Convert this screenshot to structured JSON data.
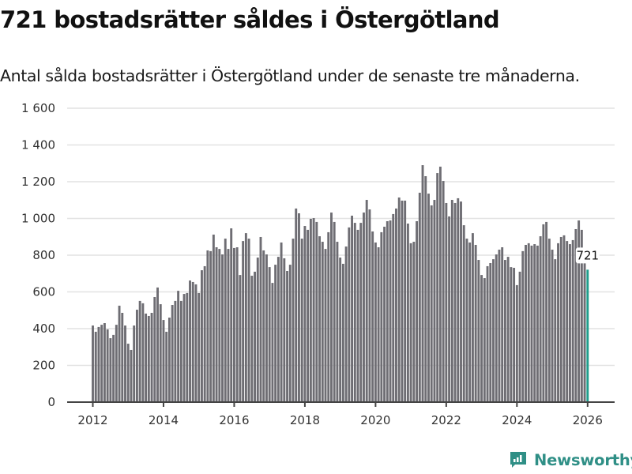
{
  "header": {
    "title": "721 bostadsrätter såldes i Östergötland",
    "subtitle": "Antal sålda bostadsrätter i Östergötland under de senaste tre månaderna."
  },
  "brand": {
    "name": "Newsworthy",
    "icon": "bar-chart-speech-bubble-icon",
    "color": "#2f8f86"
  },
  "colors": {
    "bar": "#6e6d73",
    "highlight": "#1f9e8c",
    "grid": "#e2e2e2",
    "axis": "#444444"
  },
  "chart_data": {
    "type": "bar",
    "title": "721 bostadsrätter såldes i Östergötland",
    "subtitle": "Antal sålda bostadsrätter i Östergötland under de senaste tre månaderna.",
    "xlabel": "",
    "ylabel": "",
    "ylim": [
      0,
      1600
    ],
    "yticks": [
      0,
      200,
      400,
      600,
      800,
      1000,
      1200,
      1400,
      1600
    ],
    "ytick_labels": [
      "0",
      "200",
      "400",
      "600",
      "800",
      "1 000",
      "1 200",
      "1 400",
      "1 600"
    ],
    "xticks": [
      "2012",
      "2014",
      "2016",
      "2018",
      "2020",
      "2022",
      "2024",
      "2026"
    ],
    "grid": true,
    "start": "2012-01",
    "frequency": "monthly",
    "highlight_last": true,
    "annotation": {
      "label": "721",
      "target": "last"
    },
    "values": [
      417,
      383,
      409,
      421,
      430,
      396,
      348,
      366,
      421,
      525,
      486,
      417,
      318,
      284,
      417,
      503,
      551,
      538,
      482,
      469,
      486,
      572,
      624,
      533,
      447,
      383,
      460,
      529,
      551,
      606,
      551,
      589,
      594,
      662,
      654,
      641,
      594,
      718,
      740,
      826,
      822,
      912,
      843,
      834,
      804,
      890,
      834,
      946,
      839,
      843,
      692,
      877,
      920,
      890,
      688,
      710,
      787,
      899,
      826,
      804,
      735,
      649,
      748,
      791,
      869,
      783,
      714,
      748,
      890,
      1054,
      1028,
      890,
      959,
      938,
      998,
      1002,
      981,
      903,
      873,
      834,
      925,
      1032,
      981,
      873,
      787,
      753,
      847,
      951,
      1015,
      976,
      938,
      976,
      1032,
      1101,
      1049,
      929,
      869,
      843,
      925,
      955,
      985,
      989,
      1024,
      1054,
      1114,
      1097,
      1097,
      972,
      865,
      873,
      985,
      1140,
      1290,
      1230,
      1135,
      1071,
      1101,
      1247,
      1282,
      1204,
      1084,
      1011,
      1101,
      1084,
      1110,
      1092,
      963,
      890,
      869,
      920,
      856,
      774,
      692,
      675,
      740,
      757,
      778,
      804,
      830,
      843,
      774,
      791,
      735,
      731,
      637,
      710,
      822,
      856,
      865,
      852,
      860,
      852,
      903,
      968,
      981,
      890,
      830,
      778,
      865,
      899,
      908,
      877,
      860,
      882,
      942,
      989,
      938,
      778,
      721
    ]
  }
}
